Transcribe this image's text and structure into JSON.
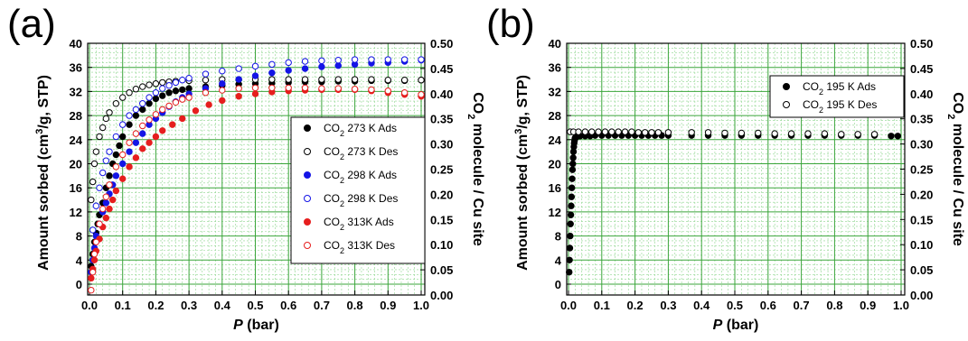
{
  "panels": [
    {
      "letter": "(a)",
      "xlabel_var": "P",
      "xlabel_unit": " (bar)",
      "ylabel_pre": "Amount sorbed (cm",
      "ylabel_sup": "3",
      "ylabel_post": "/g, STP)",
      "y2label_pre": "CO",
      "y2label_sub": "2",
      "y2label_post": " molecule / Cu site"
    },
    {
      "letter": "(b)",
      "xlabel_var": "P",
      "xlabel_unit": " (bar)",
      "ylabel_pre": "Amount sorbed (cm",
      "ylabel_sup": "3",
      "ylabel_post": "/g, STP)",
      "y2label_pre": "CO",
      "y2label_sub": "2",
      "y2label_post": " molecule / Cu site"
    }
  ],
  "chart_data": [
    {
      "type": "scatter",
      "xlim": [
        0,
        1.0
      ],
      "ylim": [
        0,
        40
      ],
      "y2lim": [
        0,
        0.5
      ],
      "xticks": [
        "0.0",
        "0.1",
        "0.2",
        "0.3",
        "0.4",
        "0.5",
        "0.6",
        "0.7",
        "0.8",
        "0.9",
        "1.0"
      ],
      "yticks": [
        "0",
        "4",
        "8",
        "12",
        "16",
        "20",
        "24",
        "28",
        "32",
        "36",
        "40"
      ],
      "y2ticks": [
        "0.00",
        "0.05",
        "0.10",
        "0.15",
        "0.20",
        "0.25",
        "0.30",
        "0.35",
        "0.40",
        "0.45",
        "0.50"
      ],
      "grid": true,
      "legend_position": "center-right",
      "series": [
        {
          "name_pre": "CO",
          "name_sub": "2",
          "name_post": " 273 K Ads",
          "color": "#000000",
          "filled": true,
          "x": [
            0.005,
            0.01,
            0.015,
            0.02,
            0.025,
            0.03,
            0.04,
            0.05,
            0.06,
            0.07,
            0.08,
            0.09,
            0.1,
            0.12,
            0.14,
            0.16,
            0.18,
            0.2,
            0.22,
            0.24,
            0.26,
            0.28,
            0.3,
            0.35,
            0.4,
            0.45,
            0.5,
            0.55,
            0.6,
            0.65,
            0.7,
            0.75,
            0.8,
            0.85,
            0.9,
            0.95,
            1.0
          ],
          "y": [
            3,
            5,
            7,
            8.5,
            10,
            11.5,
            13.5,
            16,
            18,
            20,
            21.5,
            23,
            24.5,
            26.5,
            28,
            29,
            30,
            30.8,
            31.3,
            31.8,
            32.1,
            32.3,
            32.5,
            32.8,
            33.0,
            33.2,
            33.3,
            33.4,
            33.5,
            33.6,
            33.6,
            33.7,
            33.7,
            33.8,
            33.8,
            33.8,
            33.9
          ]
        },
        {
          "name_pre": "CO",
          "name_sub": "2",
          "name_post": " 273 K Des",
          "color": "#000000",
          "filled": false,
          "x": [
            0.005,
            0.01,
            0.015,
            0.02,
            0.03,
            0.04,
            0.05,
            0.06,
            0.08,
            0.1,
            0.12,
            0.14,
            0.16,
            0.18,
            0.2,
            0.22,
            0.24,
            0.26,
            0.3,
            0.35,
            0.4,
            0.45,
            0.5,
            0.55,
            0.6,
            0.65,
            0.7,
            0.75,
            0.8,
            0.85,
            0.9,
            0.95,
            1.0
          ],
          "y": [
            14,
            17,
            20,
            22,
            24.5,
            26,
            27.5,
            28.5,
            30,
            31,
            31.8,
            32.4,
            32.8,
            33.1,
            33.3,
            33.5,
            33.6,
            33.7,
            33.8,
            33.9,
            34.0,
            34.0,
            34.0,
            34.0,
            34.0,
            34.0,
            34.0,
            34.0,
            34.0,
            34.0,
            33.9,
            33.9,
            33.9
          ]
        },
        {
          "name_pre": "CO",
          "name_sub": "2",
          "name_post": " 298 K Ads",
          "color": "#1414e6",
          "filled": true,
          "x": [
            0.005,
            0.01,
            0.015,
            0.02,
            0.03,
            0.04,
            0.05,
            0.06,
            0.07,
            0.08,
            0.1,
            0.12,
            0.14,
            0.16,
            0.18,
            0.2,
            0.22,
            0.24,
            0.26,
            0.28,
            0.3,
            0.35,
            0.4,
            0.45,
            0.5,
            0.55,
            0.6,
            0.65,
            0.7,
            0.75,
            0.8,
            0.85,
            0.9,
            0.95,
            1.0
          ],
          "y": [
            2,
            4,
            6,
            8,
            10,
            12,
            13.5,
            15,
            16.5,
            18,
            20,
            22,
            23.5,
            25,
            26.5,
            27.5,
            28.5,
            29.5,
            30.3,
            31,
            31.6,
            32.5,
            33.3,
            34,
            34.6,
            35.1,
            35.5,
            35.8,
            36.1,
            36.3,
            36.5,
            36.7,
            36.8,
            37.0,
            37.2
          ]
        },
        {
          "name_pre": "CO",
          "name_sub": "2",
          "name_post": " 298 K Des",
          "color": "#1414e6",
          "filled": false,
          "x": [
            0.01,
            0.02,
            0.03,
            0.04,
            0.05,
            0.06,
            0.08,
            0.1,
            0.12,
            0.14,
            0.16,
            0.18,
            0.2,
            0.22,
            0.24,
            0.26,
            0.28,
            0.3,
            0.35,
            0.4,
            0.45,
            0.5,
            0.55,
            0.6,
            0.65,
            0.7,
            0.75,
            0.8,
            0.85,
            0.9,
            0.95,
            1.0
          ],
          "y": [
            9,
            13,
            16,
            18.5,
            20.5,
            22,
            24.5,
            26.5,
            28,
            29,
            30,
            31,
            31.8,
            32.5,
            33,
            33.5,
            33.9,
            34.2,
            34.9,
            35.4,
            35.8,
            36.2,
            36.5,
            36.8,
            37.0,
            37.1,
            37.2,
            37.3,
            37.3,
            37.3,
            37.3,
            37.3
          ]
        },
        {
          "name_pre": "CO",
          "name_sub": "2",
          "name_post": " 313K Ads",
          "color": "#e61e1e",
          "filled": true,
          "x": [
            0.005,
            0.01,
            0.015,
            0.02,
            0.03,
            0.04,
            0.05,
            0.06,
            0.07,
            0.08,
            0.1,
            0.12,
            0.14,
            0.16,
            0.18,
            0.2,
            0.22,
            0.25,
            0.28,
            0.32,
            0.36,
            0.4,
            0.45,
            0.5,
            0.55,
            0.6,
            0.65,
            0.7,
            0.75,
            0.8,
            0.85,
            0.9,
            0.95,
            1.0
          ],
          "y": [
            1,
            2.5,
            4,
            5.5,
            7.5,
            9.5,
            11,
            12.5,
            14,
            15.5,
            17.5,
            19.5,
            21,
            22.5,
            23.5,
            24.5,
            25.5,
            26.5,
            27.5,
            28.8,
            29.8,
            30.5,
            31.2,
            31.6,
            31.9,
            32.1,
            32.2,
            32.3,
            32.3,
            32.3,
            32.1,
            31.8,
            31.5,
            31.2
          ]
        },
        {
          "name_pre": "CO",
          "name_sub": "2",
          "name_post": " 313K Des",
          "color": "#e61e1e",
          "filled": false,
          "x": [
            0.005,
            0.01,
            0.015,
            0.02,
            0.03,
            0.04,
            0.05,
            0.06,
            0.08,
            0.1,
            0.12,
            0.14,
            0.16,
            0.18,
            0.2,
            0.22,
            0.24,
            0.26,
            0.28,
            0.3,
            0.35,
            0.4,
            0.45,
            0.5,
            0.55,
            0.6,
            0.65,
            0.7,
            0.75,
            0.8,
            0.85,
            0.9,
            0.95,
            1.0
          ],
          "y": [
            -1,
            2,
            5,
            7,
            10,
            12.5,
            14.5,
            16.5,
            19.5,
            21.5,
            23.5,
            25,
            26.3,
            27.3,
            28.2,
            29,
            29.6,
            30.2,
            30.7,
            31,
            31.8,
            32.2,
            32.5,
            32.6,
            32.6,
            32.6,
            32.6,
            32.5,
            32.5,
            32.4,
            32.3,
            32.1,
            31.8,
            31.5
          ]
        }
      ]
    },
    {
      "type": "scatter",
      "xlim": [
        0,
        1.0
      ],
      "ylim": [
        0,
        40
      ],
      "y2lim": [
        0,
        0.5
      ],
      "xticks": [
        "0.0",
        "0.1",
        "0.2",
        "0.3",
        "0.4",
        "0.5",
        "0.6",
        "0.7",
        "0.8",
        "0.9",
        "1.0"
      ],
      "yticks": [
        "0",
        "4",
        "8",
        "12",
        "16",
        "20",
        "24",
        "28",
        "32",
        "36",
        "40"
      ],
      "y2ticks": [
        "0.00",
        "0.05",
        "0.10",
        "0.15",
        "0.20",
        "0.25",
        "0.30",
        "0.35",
        "0.40",
        "0.45",
        "0.50"
      ],
      "grid": true,
      "legend_position": "top-right",
      "series": [
        {
          "name_pre": "CO",
          "name_sub": "2",
          "name_post": " 195 K Ads",
          "color": "#000000",
          "filled": true,
          "x": [
            0.002,
            0.003,
            0.004,
            0.005,
            0.006,
            0.007,
            0.008,
            0.009,
            0.01,
            0.011,
            0.012,
            0.013,
            0.014,
            0.015,
            0.016,
            0.017,
            0.018,
            0.019,
            0.02,
            0.022,
            0.025,
            0.035,
            0.05,
            0.065,
            0.08,
            0.1,
            0.12,
            0.14,
            0.16,
            0.18,
            0.2,
            0.22,
            0.24,
            0.26,
            0.28,
            0.3,
            0.37,
            0.42,
            0.47,
            0.52,
            0.57,
            0.62,
            0.67,
            0.72,
            0.77,
            0.82,
            0.87,
            0.92,
            0.97,
            0.99
          ],
          "y": [
            2,
            4,
            6,
            8,
            10,
            11.5,
            13,
            14.5,
            16,
            17.5,
            19,
            20,
            21,
            22,
            22.8,
            23.4,
            23.8,
            24.1,
            24.3,
            24.4,
            24.5,
            24.6,
            24.6,
            24.6,
            24.7,
            24.7,
            24.7,
            24.7,
            24.7,
            24.7,
            24.7,
            24.7,
            24.7,
            24.7,
            24.7,
            24.7,
            24.7,
            24.7,
            24.7,
            24.7,
            24.7,
            24.7,
            24.7,
            24.7,
            24.7,
            24.7,
            24.7,
            24.7,
            24.6,
            24.6
          ]
        },
        {
          "name_pre": "CO",
          "name_sub": "2",
          "name_post": " 195 K Des",
          "color": "#000000",
          "filled": false,
          "x": [
            0.005,
            0.015,
            0.03,
            0.05,
            0.07,
            0.09,
            0.11,
            0.13,
            0.15,
            0.17,
            0.19,
            0.21,
            0.23,
            0.25,
            0.27,
            0.3,
            0.37,
            0.42,
            0.47,
            0.52,
            0.57,
            0.62,
            0.67,
            0.72,
            0.77,
            0.82,
            0.87,
            0.92
          ],
          "y": [
            25.3,
            25.3,
            25.3,
            25.3,
            25.3,
            25.3,
            25.3,
            25.3,
            25.3,
            25.3,
            25.3,
            25.2,
            25.2,
            25.2,
            25.2,
            25.2,
            25.2,
            25.2,
            25.1,
            25.1,
            25.1,
            25.0,
            25.0,
            25.0,
            25.0,
            24.9,
            24.9,
            24.9
          ]
        }
      ]
    }
  ]
}
